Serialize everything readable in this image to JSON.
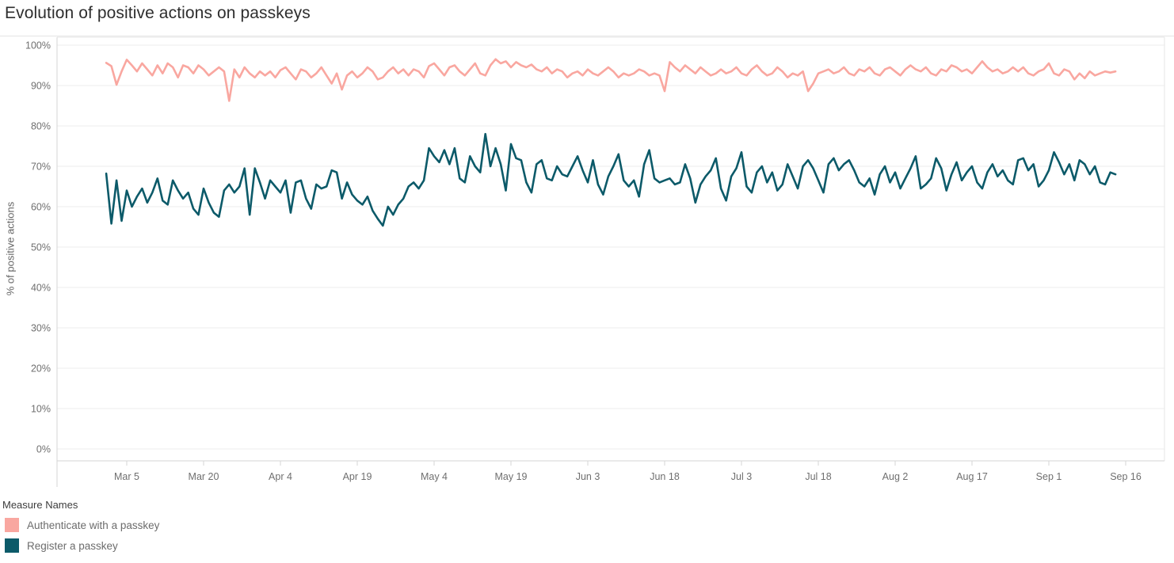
{
  "legend": {
    "title": "Measure Names"
  },
  "chart_data": {
    "type": "line",
    "title": "Evolution of positive actions on passkeys",
    "xlabel": "",
    "ylabel": "% of positive actions",
    "ylim": [
      0,
      100
    ],
    "grid": "horizontal-light",
    "legend_position": "bottom-left",
    "y_tick_labels": [
      "0%",
      "10%",
      "20%",
      "30%",
      "40%",
      "50%",
      "60%",
      "70%",
      "80%",
      "90%",
      "100%"
    ],
    "x_start_label": "Mar 1",
    "x_unit": "day",
    "x_tick_labels": [
      "Mar 5",
      "Mar 20",
      "Apr 4",
      "Apr 19",
      "May 4",
      "May 19",
      "Jun 3",
      "Jun 18",
      "Jul 3",
      "Jul 18",
      "Aug 2",
      "Aug 17",
      "Sep 1",
      "Sep 16"
    ],
    "x_tick_day_indices": [
      4,
      19,
      34,
      49,
      64,
      79,
      94,
      109,
      124,
      139,
      154,
      169,
      184,
      199
    ],
    "series": [
      {
        "name": "Authenticate with a passkey",
        "color": "#F9A7A0",
        "values": [
          95.6,
          94.8,
          90.2,
          93.5,
          96.4,
          95.0,
          93.5,
          95.5,
          94.0,
          92.5,
          95.0,
          93.0,
          95.5,
          94.5,
          92.0,
          95.0,
          94.5,
          93.0,
          95.0,
          94.0,
          92.5,
          93.5,
          94.5,
          93.5,
          86.2,
          94.0,
          92.0,
          94.5,
          93.0,
          92.0,
          93.5,
          92.5,
          93.5,
          92.0,
          93.8,
          94.5,
          93.0,
          91.5,
          94.0,
          93.5,
          92.0,
          93.0,
          94.5,
          92.5,
          90.5,
          93.0,
          89.0,
          92.5,
          93.5,
          92.0,
          93.0,
          94.5,
          93.5,
          91.5,
          92.0,
          93.5,
          94.5,
          93.0,
          94.0,
          92.5,
          94.0,
          93.5,
          92.0,
          94.8,
          95.5,
          94.0,
          92.5,
          94.5,
          95.0,
          93.5,
          92.5,
          94.0,
          95.5,
          93.0,
          92.5,
          95.0,
          96.5,
          95.5,
          96.0,
          94.5,
          95.8,
          95.0,
          94.5,
          95.2,
          94.0,
          93.5,
          94.5,
          93.0,
          94.0,
          93.5,
          92.0,
          93.0,
          93.5,
          92.5,
          94.0,
          93.0,
          92.5,
          93.5,
          94.5,
          93.5,
          92.0,
          93.0,
          92.5,
          93.0,
          94.0,
          93.5,
          92.5,
          93.0,
          92.5,
          88.6,
          95.8,
          94.5,
          93.5,
          95.0,
          94.0,
          93.0,
          94.5,
          93.5,
          92.5,
          93.0,
          94.0,
          93.0,
          93.5,
          94.5,
          93.0,
          92.5,
          94.0,
          95.0,
          93.5,
          92.5,
          93.0,
          94.5,
          93.5,
          92.0,
          93.0,
          92.5,
          93.5,
          88.6,
          90.5,
          93.0,
          93.5,
          94.0,
          93.0,
          93.5,
          94.5,
          93.0,
          92.5,
          94.0,
          93.5,
          94.5,
          93.0,
          92.5,
          94.0,
          94.5,
          93.5,
          92.5,
          94.0,
          95.0,
          94.0,
          93.5,
          94.5,
          93.0,
          92.5,
          94.0,
          93.5,
          95.0,
          94.5,
          93.5,
          94.0,
          93.0,
          94.5,
          96.0,
          94.5,
          93.5,
          94.0,
          93.0,
          93.5,
          94.5,
          93.5,
          94.5,
          93.0,
          92.5,
          93.5,
          94.0,
          95.5,
          93.0,
          92.5,
          94.0,
          93.5,
          91.5,
          93.0,
          91.8,
          93.5,
          92.5,
          93.0,
          93.5,
          93.2,
          93.5
        ]
      },
      {
        "name": "Register a passkey",
        "color": "#0C5A69",
        "values": [
          68.2,
          55.8,
          66.5,
          56.5,
          64.0,
          60.0,
          62.5,
          64.5,
          61.0,
          63.5,
          67.0,
          61.5,
          60.5,
          66.5,
          64.0,
          62.0,
          63.5,
          59.5,
          58.0,
          64.5,
          61.0,
          58.5,
          57.5,
          64.0,
          65.5,
          63.5,
          65.0,
          69.5,
          58.0,
          69.5,
          66.0,
          62.0,
          66.5,
          65.0,
          63.5,
          66.5,
          58.5,
          66.0,
          66.5,
          62.0,
          59.5,
          65.5,
          64.5,
          65.0,
          69.0,
          68.5,
          62.0,
          66.0,
          63.0,
          61.5,
          60.5,
          62.5,
          59.0,
          57.0,
          55.3,
          60.0,
          58.0,
          60.5,
          62.0,
          65.0,
          66.0,
          64.5,
          66.5,
          74.5,
          72.5,
          71.0,
          74.0,
          70.5,
          74.5,
          67.0,
          66.0,
          72.5,
          70.0,
          68.5,
          78.0,
          70.0,
          74.5,
          70.5,
          64.0,
          75.5,
          72.0,
          71.5,
          66.0,
          63.5,
          70.5,
          71.5,
          67.0,
          66.5,
          70.0,
          68.0,
          67.5,
          70.0,
          72.5,
          69.0,
          66.0,
          71.5,
          65.5,
          63.0,
          67.5,
          70.0,
          73.0,
          66.5,
          65.0,
          66.5,
          62.5,
          70.5,
          74.0,
          67.0,
          66.0,
          66.5,
          67.0,
          65.5,
          66.0,
          70.5,
          67.0,
          61.0,
          65.5,
          67.5,
          69.0,
          72.0,
          64.5,
          61.5,
          67.5,
          69.5,
          73.5,
          65.0,
          63.5,
          68.5,
          70.0,
          66.0,
          68.5,
          64.0,
          65.5,
          70.5,
          67.5,
          64.5,
          70.0,
          71.5,
          69.5,
          66.5,
          63.5,
          70.5,
          72.0,
          69.0,
          70.5,
          71.5,
          69.0,
          66.0,
          65.0,
          67.0,
          63.0,
          68.0,
          70.0,
          66.0,
          68.5,
          64.5,
          67.0,
          69.5,
          72.5,
          64.5,
          65.5,
          67.0,
          72.0,
          69.5,
          64.0,
          68.0,
          71.0,
          66.5,
          68.5,
          70.0,
          66.0,
          64.5,
          68.5,
          70.5,
          67.5,
          69.0,
          66.5,
          65.5,
          71.5,
          72.0,
          69.0,
          70.5,
          65.0,
          66.5,
          69.0,
          73.5,
          71.0,
          68.0,
          70.5,
          66.5,
          71.5,
          70.5,
          68.0,
          70.0,
          66.0,
          65.5,
          68.5,
          68.0
        ]
      }
    ]
  }
}
